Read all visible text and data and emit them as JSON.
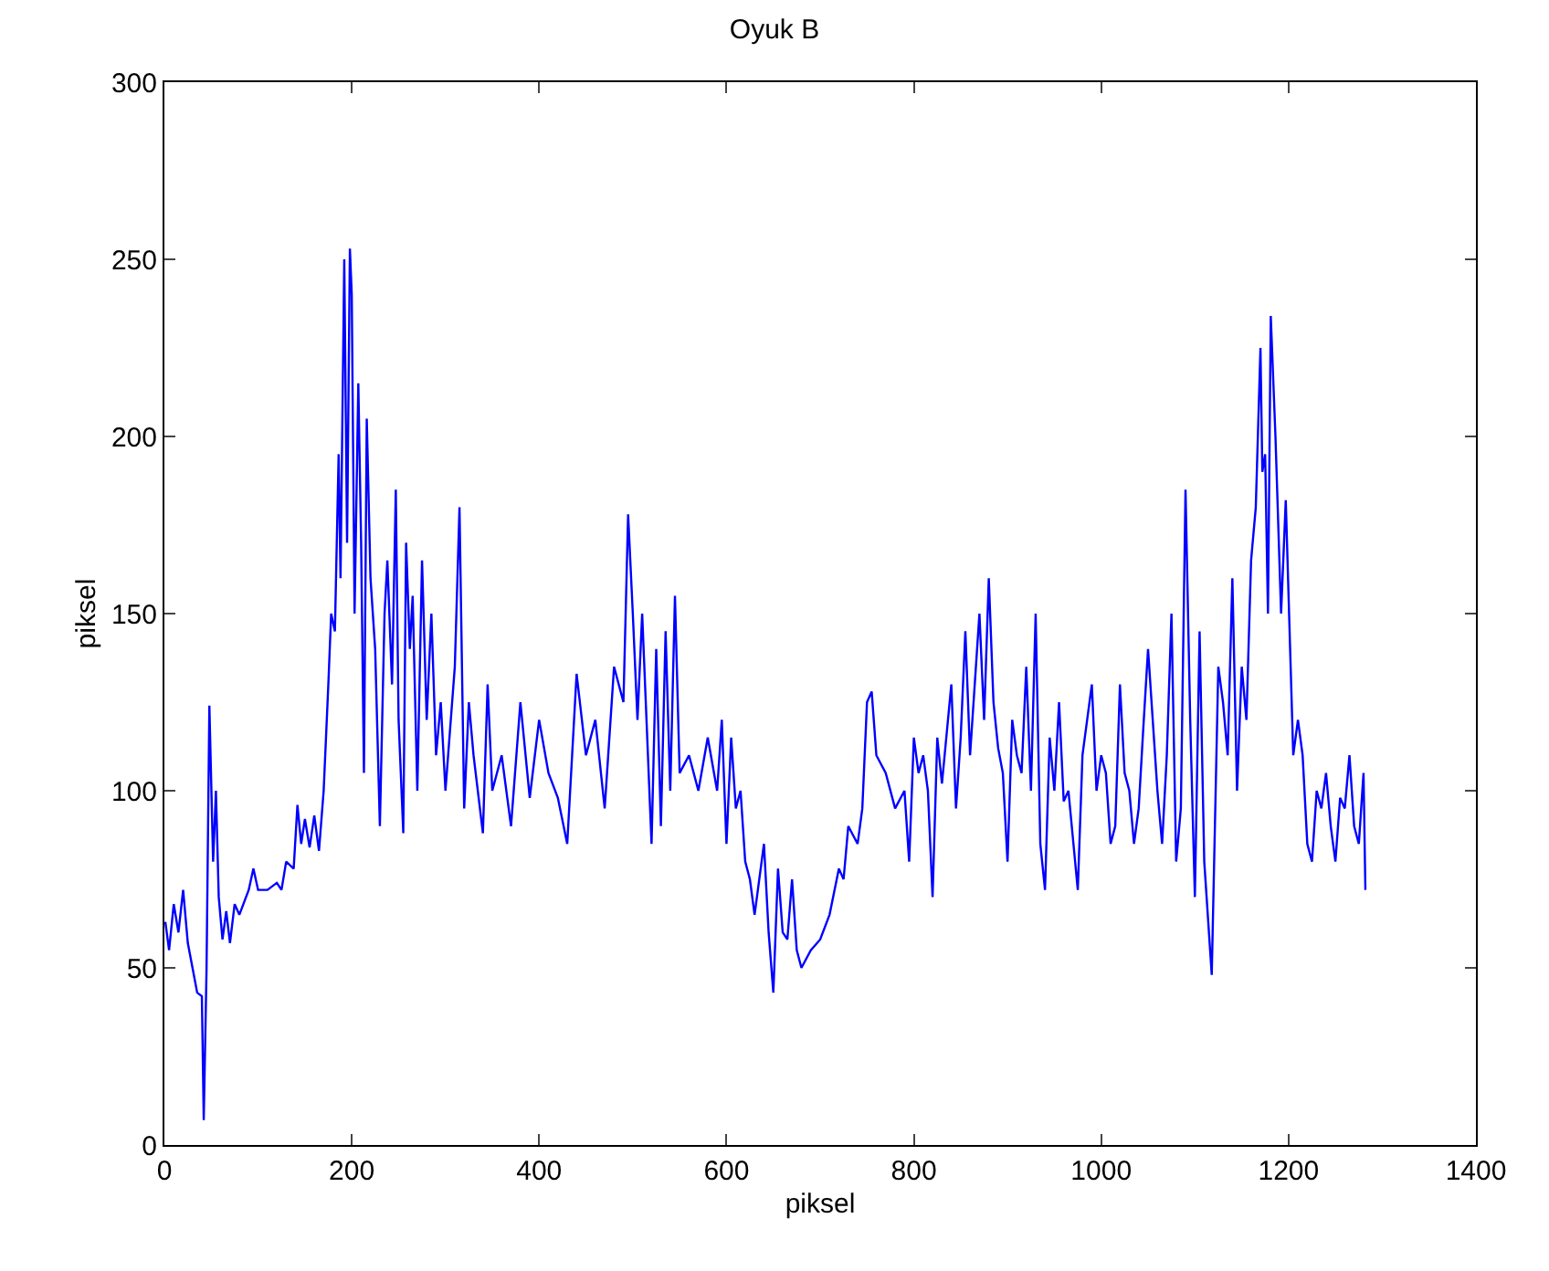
{
  "chart_data": {
    "type": "line",
    "title": "Oyuk B",
    "xlabel": "piksel",
    "ylabel": "piksel",
    "xlim": [
      0,
      1400
    ],
    "xticks": [
      0,
      200,
      400,
      600,
      800,
      1000,
      1200,
      1400
    ],
    "ylim": [
      0,
      300
    ],
    "yticks": [
      0,
      50,
      100,
      150,
      200,
      250,
      300
    ],
    "marker": "none",
    "line_style": "solid",
    "series": [
      {
        "color": "#0000ff",
        "x": [
          1,
          5,
          10,
          15,
          20,
          25,
          30,
          35,
          40,
          42,
          45,
          48,
          52,
          55,
          58,
          62,
          66,
          70,
          75,
          80,
          90,
          95,
          100,
          110,
          120,
          125,
          130,
          138,
          142,
          146,
          150,
          155,
          160,
          165,
          170,
          175,
          178,
          182,
          186,
          188,
          192,
          195,
          198,
          200,
          203,
          207,
          210,
          213,
          216,
          220,
          225,
          230,
          235,
          238,
          243,
          247,
          250,
          255,
          258,
          262,
          265,
          270,
          275,
          280,
          285,
          290,
          295,
          300,
          310,
          315,
          320,
          325,
          330,
          340,
          345,
          350,
          360,
          370,
          380,
          390,
          400,
          410,
          420,
          430,
          440,
          450,
          460,
          470,
          480,
          490,
          495,
          500,
          505,
          510,
          520,
          525,
          530,
          535,
          540,
          545,
          550,
          560,
          570,
          580,
          590,
          595,
          600,
          605,
          610,
          615,
          620,
          625,
          630,
          640,
          645,
          650,
          655,
          660,
          665,
          670,
          675,
          680,
          690,
          700,
          710,
          720,
          725,
          730,
          740,
          745,
          750,
          755,
          760,
          770,
          780,
          790,
          795,
          800,
          805,
          810,
          815,
          820,
          825,
          830,
          840,
          845,
          850,
          855,
          860,
          865,
          870,
          875,
          880,
          885,
          890,
          895,
          900,
          905,
          910,
          915,
          920,
          925,
          930,
          935,
          940,
          945,
          950,
          955,
          960,
          965,
          975,
          980,
          985,
          990,
          995,
          1000,
          1005,
          1010,
          1015,
          1020,
          1025,
          1030,
          1035,
          1040,
          1045,
          1050,
          1055,
          1060,
          1065,
          1070,
          1075,
          1080,
          1085,
          1090,
          1095,
          1100,
          1105,
          1110,
          1118,
          1125,
          1130,
          1135,
          1140,
          1145,
          1150,
          1155,
          1160,
          1165,
          1170,
          1172,
          1175,
          1178,
          1181,
          1186,
          1192,
          1197,
          1205,
          1210,
          1215,
          1220,
          1225,
          1230,
          1235,
          1240,
          1245,
          1250,
          1255,
          1260,
          1265,
          1270,
          1275,
          1280,
          1282
        ],
        "values": [
          63,
          55,
          68,
          60,
          72,
          57,
          50,
          43,
          42,
          7,
          50,
          124,
          80,
          100,
          70,
          58,
          66,
          57,
          68,
          65,
          72,
          78,
          72,
          72,
          74,
          72,
          80,
          78,
          96,
          85,
          92,
          84,
          93,
          83,
          100,
          130,
          150,
          145,
          195,
          160,
          250,
          170,
          253,
          240,
          150,
          215,
          170,
          105,
          205,
          160,
          140,
          90,
          150,
          165,
          130,
          185,
          120,
          88,
          170,
          140,
          155,
          100,
          165,
          120,
          150,
          110,
          125,
          100,
          135,
          180,
          95,
          125,
          110,
          88,
          130,
          100,
          110,
          90,
          125,
          98,
          120,
          105,
          98,
          85,
          133,
          110,
          120,
          95,
          135,
          125,
          178,
          150,
          120,
          150,
          85,
          140,
          90,
          145,
          100,
          155,
          105,
          110,
          100,
          115,
          100,
          120,
          85,
          115,
          95,
          100,
          80,
          75,
          65,
          85,
          60,
          43,
          78,
          60,
          58,
          75,
          55,
          50,
          55,
          58,
          65,
          78,
          75,
          90,
          85,
          95,
          125,
          128,
          110,
          105,
          95,
          100,
          80,
          115,
          105,
          110,
          100,
          70,
          115,
          102,
          130,
          95,
          115,
          145,
          110,
          130,
          150,
          120,
          160,
          125,
          112,
          105,
          80,
          120,
          110,
          105,
          135,
          100,
          150,
          85,
          72,
          115,
          100,
          125,
          97,
          100,
          72,
          110,
          120,
          130,
          100,
          110,
          105,
          85,
          90,
          130,
          105,
          100,
          85,
          95,
          118,
          140,
          120,
          100,
          85,
          110,
          150,
          80,
          95,
          185,
          120,
          70,
          145,
          80,
          48,
          135,
          125,
          110,
          160,
          100,
          135,
          120,
          165,
          180,
          225,
          190,
          195,
          150,
          234,
          200,
          150,
          182,
          110,
          120,
          110,
          85,
          80,
          100,
          95,
          105,
          90,
          80,
          98,
          95,
          110,
          90,
          85,
          105,
          72
        ]
      }
    ]
  }
}
